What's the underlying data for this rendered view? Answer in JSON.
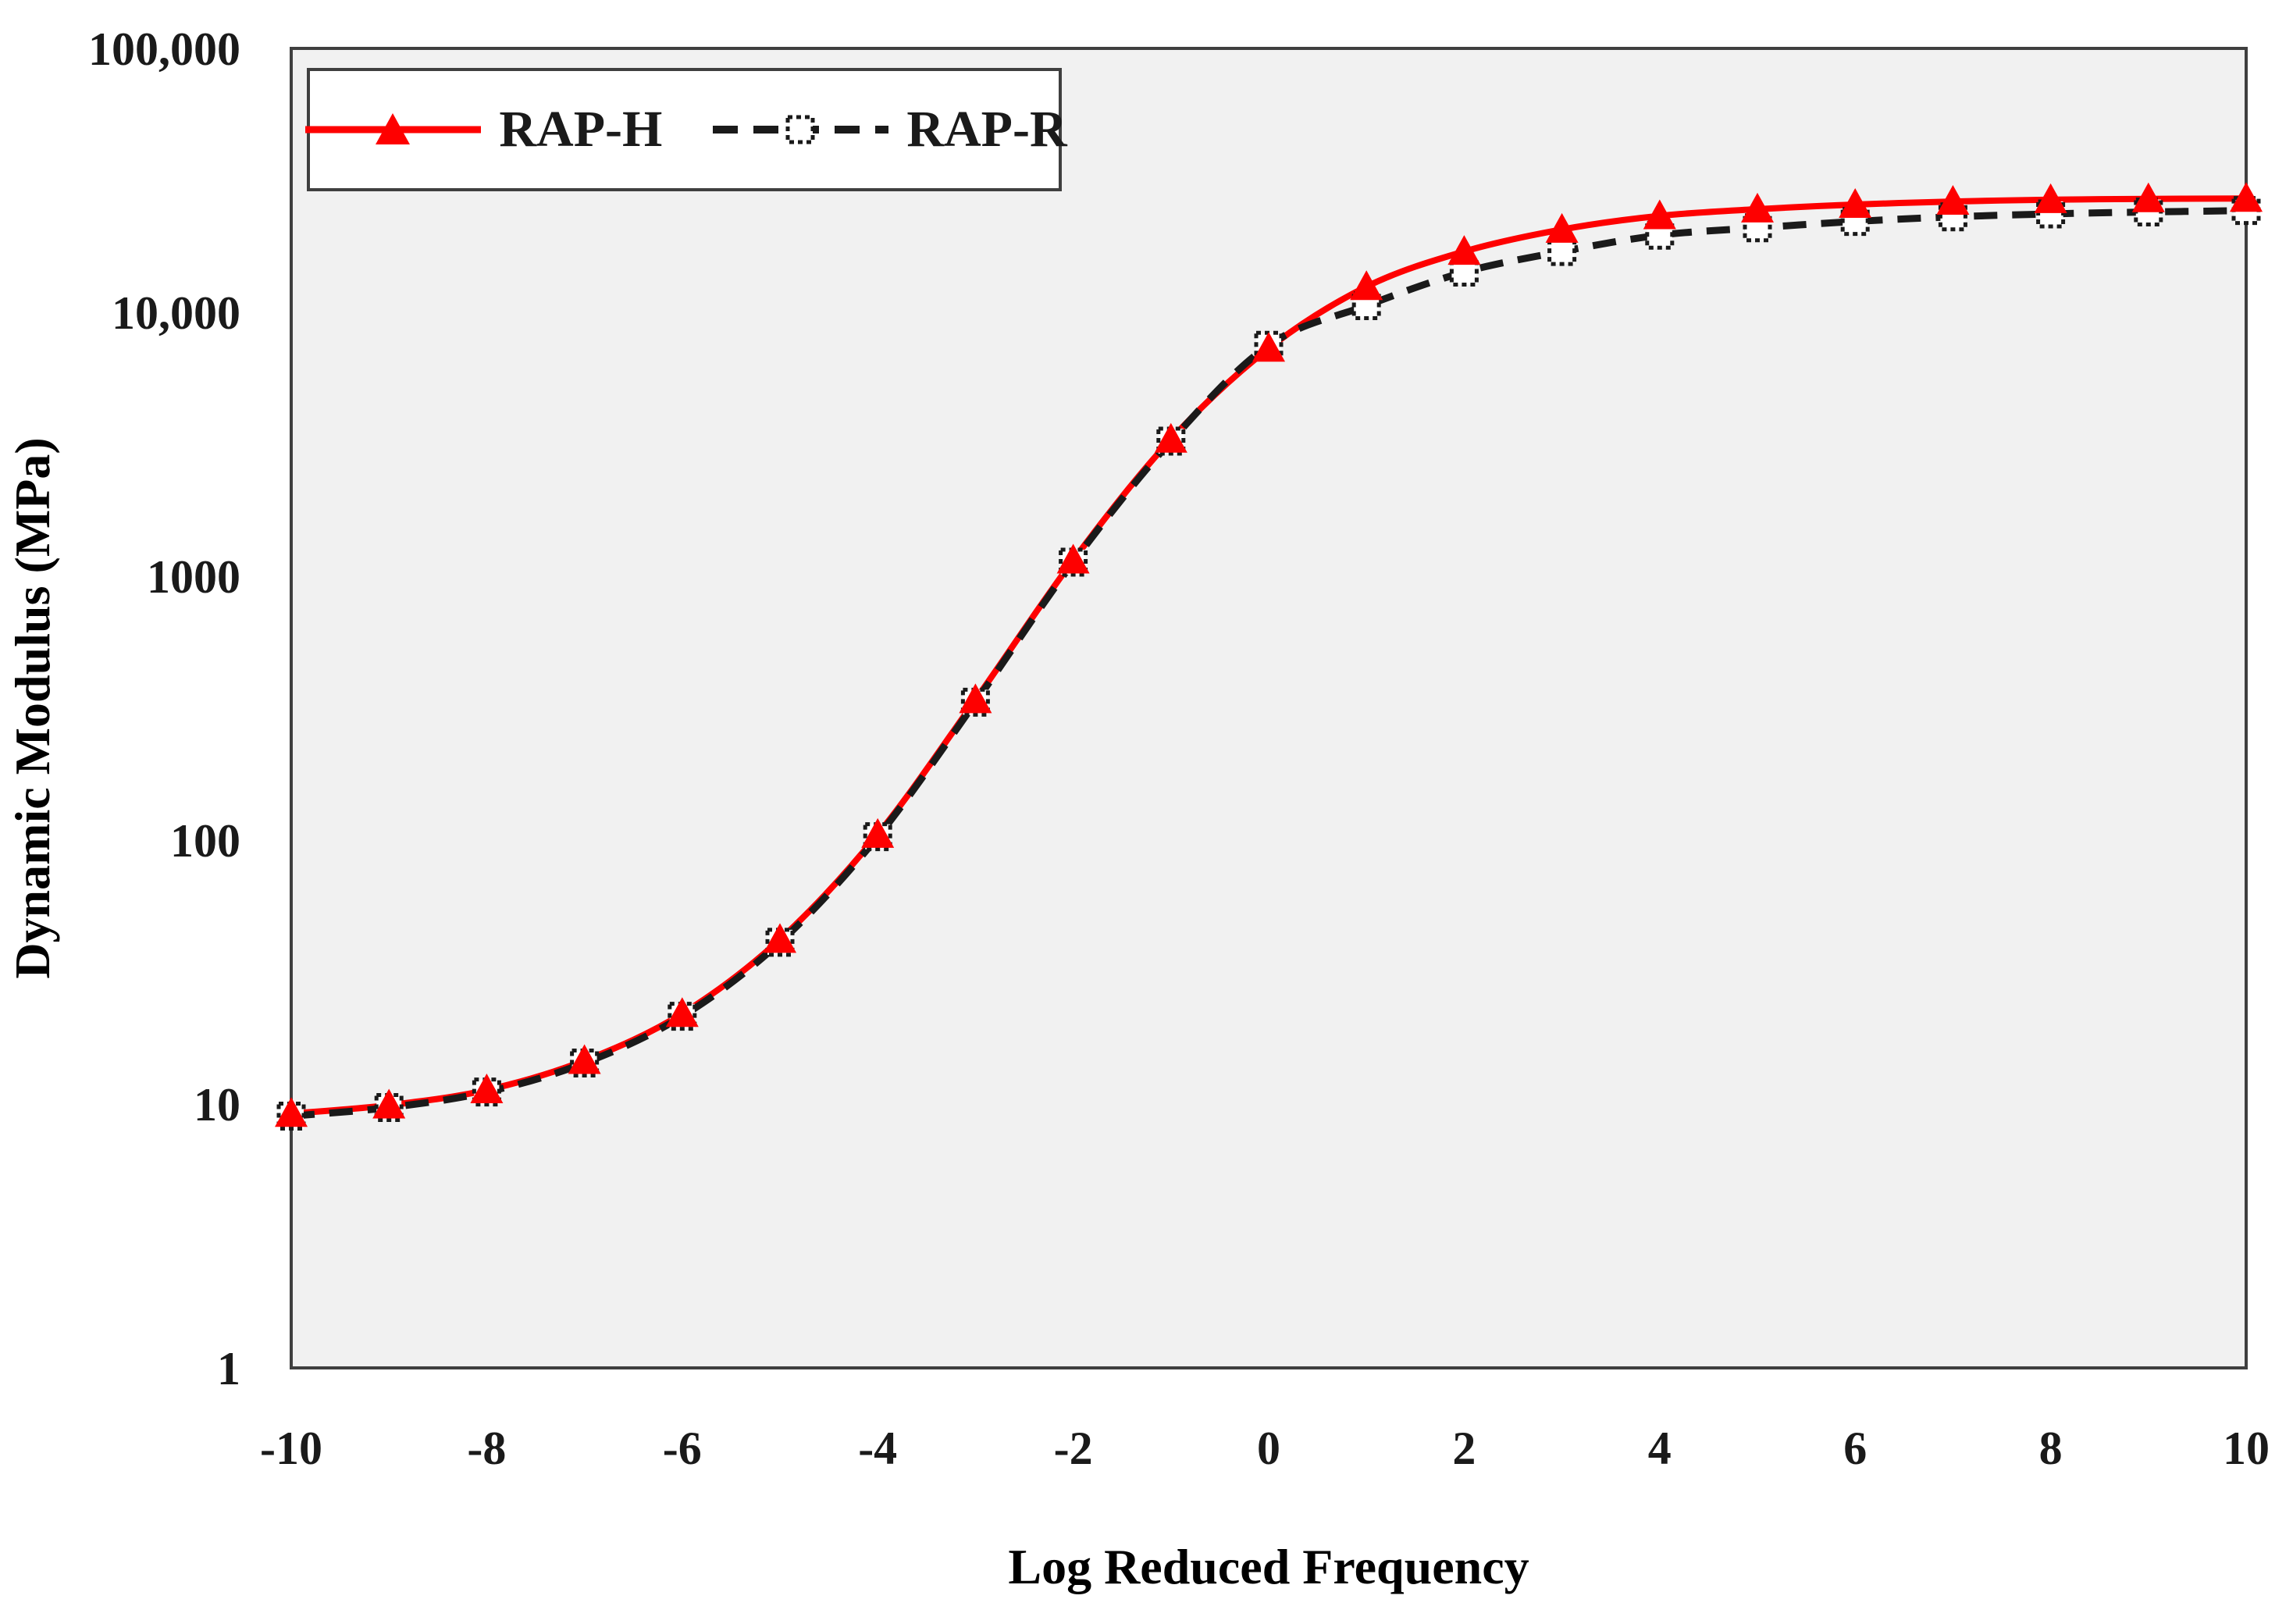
{
  "figure_kind": "line-chart",
  "colors": {
    "page_bg": "#ffffff",
    "plot_bg": "#f1f1f1",
    "frame": "#3f3f3f",
    "rap_h": "#fe0000",
    "rap_r": "#1a1a1a",
    "text": "#1a1a1a"
  },
  "chart_data": {
    "type": "line",
    "title": "",
    "xlabel": "Log Reduced Frequency",
    "ylabel": "Dynamic Modulus (MPa)",
    "y_scale": "log",
    "xlim": [
      -10,
      10
    ],
    "ylim": [
      1,
      100000
    ],
    "grid": false,
    "legend_position": "top-left",
    "x_ticks": [
      -10,
      -8,
      -6,
      -4,
      -2,
      0,
      2,
      4,
      6,
      8,
      10
    ],
    "x_tick_labels": [
      "-10",
      "-8",
      "-6",
      "-4",
      "-2",
      "0",
      "2",
      "4",
      "6",
      "8",
      "10"
    ],
    "y_ticks": [
      1,
      10,
      100,
      1000,
      10000,
      100000
    ],
    "y_tick_labels": [
      "1",
      "10",
      "100",
      "1000",
      "10,000",
      "100,000"
    ],
    "x": [
      -10,
      -9,
      -8,
      -7,
      -6,
      -5,
      -4,
      -3,
      -2,
      -1,
      0,
      1,
      2,
      3,
      4,
      5,
      6,
      7,
      8,
      9,
      10
    ],
    "series": [
      {
        "name": "RAP-H",
        "color": "#fe0000",
        "line_style": "solid",
        "marker": "filled-triangle",
        "values": [
          9.2,
          9.9,
          11.3,
          14.6,
          22,
          42,
          105,
          340,
          1150,
          3300,
          7300,
          12500,
          17000,
          20600,
          23200,
          24600,
          25600,
          26300,
          26700,
          26900,
          27000
        ]
      },
      {
        "name": "RAP-R",
        "color": "#1a1a1a",
        "line_style": "dashed",
        "marker": "dotted-open-square",
        "values": [
          9.0,
          9.7,
          11.1,
          14.3,
          21.5,
          41,
          103,
          333,
          1130,
          3250,
          7500,
          10600,
          14200,
          17000,
          19600,
          20900,
          22100,
          23000,
          23600,
          24000,
          24300
        ]
      }
    ]
  }
}
